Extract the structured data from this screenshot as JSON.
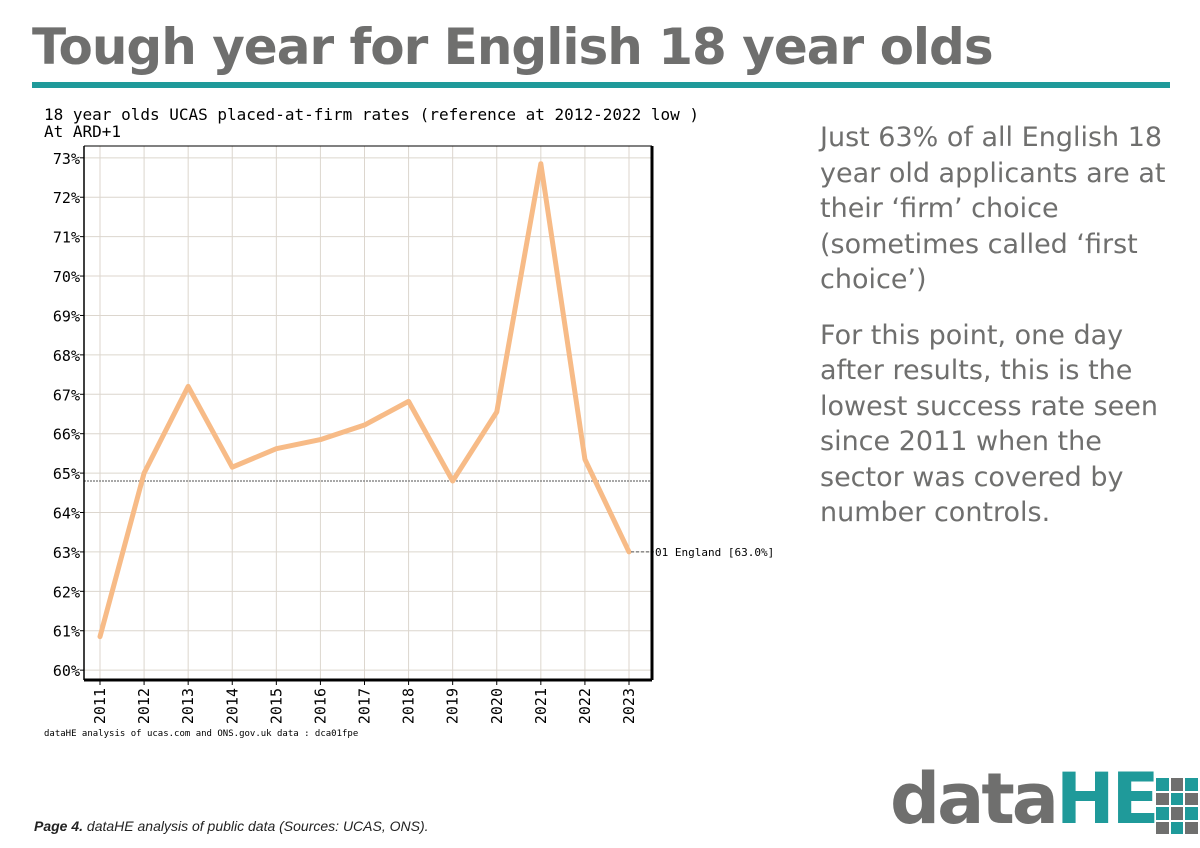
{
  "page": {
    "title": "Tough year for English 18 year olds",
    "accent_color": "#1f9a9a",
    "text_grey": "#6f6f6e",
    "side_text": [
      "Just 63% of all English 18 year old applicants are at their ‘firm’ choice (sometimes called ‘first choice’)",
      "For this point, one day after results, this is the lowest success rate seen since 2011 when the sector was covered by number controls."
    ],
    "footer_bold": "Page 4.",
    "footer_text": " dataHE analysis of public data (Sources: UCAS, ONS).",
    "logo": {
      "part1": "data",
      "part2": "HE",
      "part1_color": "#6f6f6e",
      "part2_color": "#1f9a9a"
    }
  },
  "chart_data": {
    "type": "line",
    "title": "18 year olds UCAS placed-at-firm rates (reference at 2012-2022 low )",
    "subtitle": "At ARD+1",
    "source": "dataHE analysis of ucas.com and ONS.gov.uk data : dca01fpe",
    "categories": [
      "2011",
      "2012",
      "2013",
      "2014",
      "2015",
      "2016",
      "2017",
      "2018",
      "2019",
      "2020",
      "2021",
      "2022",
      "2023"
    ],
    "series": [
      {
        "name": "01 England",
        "color": "#f7bb87",
        "values": [
          60.85,
          65.0,
          67.2,
          65.15,
          65.62,
          65.85,
          66.22,
          66.82,
          64.8,
          66.55,
          72.85,
          65.35,
          63.0
        ]
      }
    ],
    "series_label": "01 England [63.0%]",
    "reference_line": {
      "value": 64.8,
      "label": "2012-2022 low"
    },
    "yticks": [
      "60%",
      "61%",
      "62%",
      "63%",
      "64%",
      "65%",
      "66%",
      "67%",
      "68%",
      "69%",
      "70%",
      "71%",
      "72%",
      "73%"
    ],
    "ylim": [
      59.75,
      73.3
    ],
    "grid": true,
    "xlabel": "",
    "ylabel": ""
  }
}
